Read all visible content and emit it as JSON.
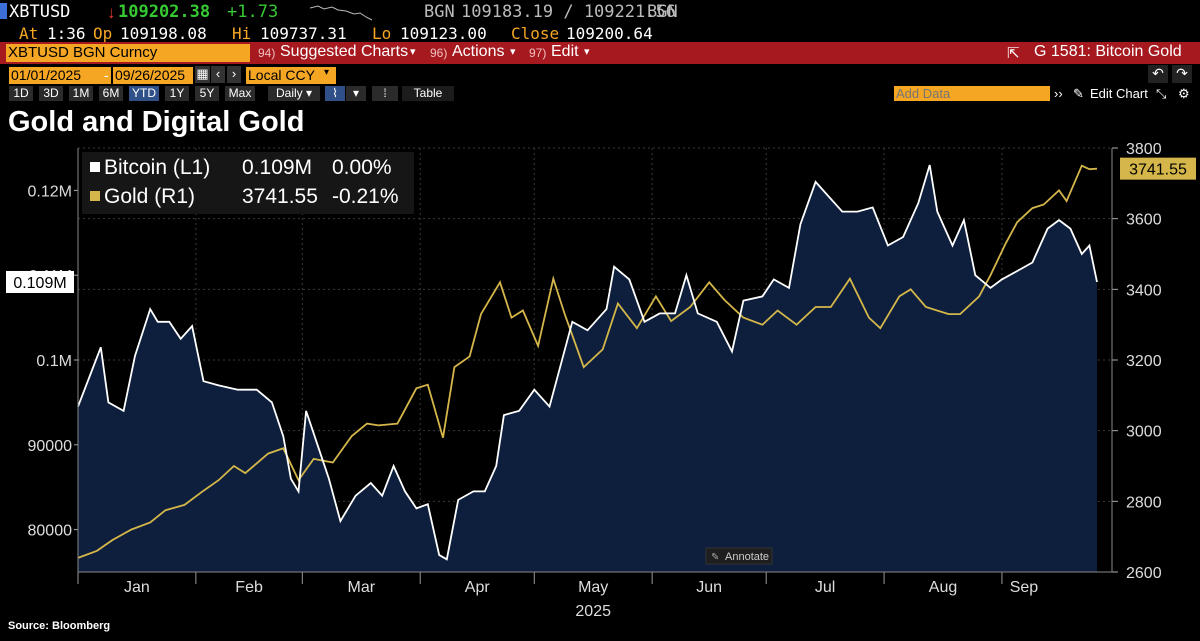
{
  "header": {
    "ticker": "XBTUSD",
    "last": "109202.38",
    "change": "+1.73",
    "bid_label": "BGN",
    "bid_ask": "109183.19 / 109221.56",
    "ask_label": "BGN",
    "at_label": "At",
    "at": "1:36",
    "op_label": "Op",
    "op": "109198.08",
    "hi_label": "Hi",
    "hi": "109737.31",
    "lo_label": "Lo",
    "lo": "109123.00",
    "close_label": "Close",
    "close": "109200.64"
  },
  "toolbar": {
    "security": "XBTUSD BGN Curncy",
    "suggested_num": "94)",
    "suggested": "Suggested Charts",
    "actions_num": "96)",
    "actions": "Actions",
    "edit_num": "97)",
    "edit": "Edit",
    "chart_id": "G 1581: Bitcoin Gold"
  },
  "range": {
    "start": "01/01/2025",
    "dash": "-",
    "end": "09/26/2025",
    "currency": "Local CCY"
  },
  "periods": [
    "1D",
    "3D",
    "1M",
    "6M",
    "YTD",
    "1Y",
    "5Y",
    "Max"
  ],
  "period_selected": "YTD",
  "frequency": "Daily",
  "table_label": "Table",
  "add_data_placeholder": "Add Data",
  "edit_chart_label": "Edit Chart",
  "title": "Gold and Digital Gold",
  "annotate_label": "Annotate",
  "source": "Source: Bloomberg",
  "legend": [
    {
      "name": "Bitcoin (L1)",
      "value": "0.109M",
      "pct": "0.00%",
      "color": "#ffffff"
    },
    {
      "name": "Gold (R1)",
      "value": "3741.55",
      "pct": "-0.21%",
      "color": "#d4b64a"
    }
  ],
  "colors": {
    "accent": "#f5a623",
    "bar": "#a5191f",
    "bitcoin": "#ffffff",
    "gold": "#d4b64a",
    "fill": "#0d1f3c"
  },
  "chart_data": {
    "type": "line",
    "title": "Gold and Digital Gold",
    "x_range": [
      "2025-01-01",
      "2025-09-26"
    ],
    "x_ticks": [
      "Jan",
      "Feb",
      "Mar",
      "Apr",
      "May",
      "Jun",
      "Jul",
      "Aug",
      "Sep"
    ],
    "x_year_label": "2025",
    "left_axis": {
      "ticks": [
        "80000",
        "90000",
        "0.1M",
        "0.11M",
        "0.12M"
      ],
      "ylim": [
        75000,
        125000
      ],
      "last_label": "0.109M"
    },
    "right_axis": {
      "ticks": [
        "2600",
        "2800",
        "3000",
        "3200",
        "3400",
        "3600",
        "3800"
      ],
      "ylim": [
        2600,
        3800
      ],
      "last_label": "3741.55"
    },
    "grid": true,
    "series": [
      {
        "name": "Bitcoin (L1)",
        "axis": "left",
        "area": true,
        "points": [
          [
            "2025-01-01",
            94500
          ],
          [
            "2025-01-04",
            98000
          ],
          [
            "2025-01-07",
            101500
          ],
          [
            "2025-01-09",
            95000
          ],
          [
            "2025-01-13",
            94000
          ],
          [
            "2025-01-16",
            100500
          ],
          [
            "2025-01-20",
            106000
          ],
          [
            "2025-01-22",
            104500
          ],
          [
            "2025-01-25",
            104500
          ],
          [
            "2025-01-28",
            102500
          ],
          [
            "2025-01-31",
            104000
          ],
          [
            "2025-02-03",
            97500
          ],
          [
            "2025-02-07",
            97000
          ],
          [
            "2025-02-12",
            96500
          ],
          [
            "2025-02-17",
            96500
          ],
          [
            "2025-02-21",
            95000
          ],
          [
            "2025-02-24",
            91000
          ],
          [
            "2025-02-26",
            86000
          ],
          [
            "2025-02-28",
            84500
          ],
          [
            "2025-03-02",
            94000
          ],
          [
            "2025-03-05",
            90000
          ],
          [
            "2025-03-08",
            86000
          ],
          [
            "2025-03-11",
            81000
          ],
          [
            "2025-03-15",
            84000
          ],
          [
            "2025-03-19",
            85500
          ],
          [
            "2025-03-22",
            84000
          ],
          [
            "2025-03-25",
            87500
          ],
          [
            "2025-03-28",
            84500
          ],
          [
            "2025-03-31",
            82500
          ],
          [
            "2025-04-03",
            83000
          ],
          [
            "2025-04-06",
            77000
          ],
          [
            "2025-04-08",
            76500
          ],
          [
            "2025-04-11",
            83500
          ],
          [
            "2025-04-15",
            84500
          ],
          [
            "2025-04-18",
            84500
          ],
          [
            "2025-04-21",
            87500
          ],
          [
            "2025-04-23",
            93500
          ],
          [
            "2025-04-27",
            94000
          ],
          [
            "2025-05-01",
            96500
          ],
          [
            "2025-05-05",
            94500
          ],
          [
            "2025-05-08",
            99500
          ],
          [
            "2025-05-11",
            104500
          ],
          [
            "2025-05-15",
            103500
          ],
          [
            "2025-05-20",
            106000
          ],
          [
            "2025-05-22",
            111000
          ],
          [
            "2025-05-26",
            109500
          ],
          [
            "2025-05-30",
            104500
          ],
          [
            "2025-06-03",
            105500
          ],
          [
            "2025-06-07",
            105500
          ],
          [
            "2025-06-10",
            110000
          ],
          [
            "2025-06-13",
            105500
          ],
          [
            "2025-06-18",
            104500
          ],
          [
            "2025-06-22",
            101000
          ],
          [
            "2025-06-25",
            107000
          ],
          [
            "2025-06-30",
            107500
          ],
          [
            "2025-07-03",
            109500
          ],
          [
            "2025-07-07",
            108500
          ],
          [
            "2025-07-10",
            116000
          ],
          [
            "2025-07-14",
            121000
          ],
          [
            "2025-07-17",
            119500
          ],
          [
            "2025-07-21",
            117500
          ],
          [
            "2025-07-25",
            117500
          ],
          [
            "2025-07-29",
            118000
          ],
          [
            "2025-08-02",
            113500
          ],
          [
            "2025-08-06",
            114500
          ],
          [
            "2025-08-10",
            118500
          ],
          [
            "2025-08-13",
            123000
          ],
          [
            "2025-08-15",
            117500
          ],
          [
            "2025-08-19",
            113500
          ],
          [
            "2025-08-22",
            116500
          ],
          [
            "2025-08-25",
            110000
          ],
          [
            "2025-08-29",
            108500
          ],
          [
            "2025-09-01",
            109500
          ],
          [
            "2025-09-05",
            110500
          ],
          [
            "2025-09-09",
            111500
          ],
          [
            "2025-09-13",
            115500
          ],
          [
            "2025-09-16",
            116500
          ],
          [
            "2025-09-19",
            115500
          ],
          [
            "2025-09-22",
            112500
          ],
          [
            "2025-09-24",
            113500
          ],
          [
            "2025-09-26",
            109200
          ]
        ]
      },
      {
        "name": "Gold (R1)",
        "axis": "right",
        "area": false,
        "points": [
          [
            "2025-01-01",
            2640
          ],
          [
            "2025-01-06",
            2660
          ],
          [
            "2025-01-10",
            2690
          ],
          [
            "2025-01-15",
            2720
          ],
          [
            "2025-01-20",
            2740
          ],
          [
            "2025-01-24",
            2775
          ],
          [
            "2025-01-29",
            2790
          ],
          [
            "2025-02-03",
            2830
          ],
          [
            "2025-02-07",
            2860
          ],
          [
            "2025-02-11",
            2900
          ],
          [
            "2025-02-14",
            2880
          ],
          [
            "2025-02-20",
            2935
          ],
          [
            "2025-02-24",
            2950
          ],
          [
            "2025-02-28",
            2860
          ],
          [
            "2025-03-04",
            2920
          ],
          [
            "2025-03-09",
            2910
          ],
          [
            "2025-03-14",
            2985
          ],
          [
            "2025-03-18",
            3020
          ],
          [
            "2025-03-21",
            3015
          ],
          [
            "2025-03-26",
            3020
          ],
          [
            "2025-03-31",
            3120
          ],
          [
            "2025-04-03",
            3130
          ],
          [
            "2025-04-07",
            2980
          ],
          [
            "2025-04-10",
            3180
          ],
          [
            "2025-04-14",
            3210
          ],
          [
            "2025-04-17",
            3330
          ],
          [
            "2025-04-22",
            3420
          ],
          [
            "2025-04-25",
            3320
          ],
          [
            "2025-04-28",
            3340
          ],
          [
            "2025-05-02",
            3240
          ],
          [
            "2025-05-06",
            3430
          ],
          [
            "2025-05-09",
            3330
          ],
          [
            "2025-05-14",
            3180
          ],
          [
            "2025-05-19",
            3230
          ],
          [
            "2025-05-23",
            3360
          ],
          [
            "2025-05-28",
            3290
          ],
          [
            "2025-06-02",
            3380
          ],
          [
            "2025-06-06",
            3310
          ],
          [
            "2025-06-11",
            3350
          ],
          [
            "2025-06-16",
            3420
          ],
          [
            "2025-06-20",
            3370
          ],
          [
            "2025-06-25",
            3320
          ],
          [
            "2025-06-30",
            3300
          ],
          [
            "2025-07-04",
            3340
          ],
          [
            "2025-07-09",
            3300
          ],
          [
            "2025-07-14",
            3350
          ],
          [
            "2025-07-18",
            3350
          ],
          [
            "2025-07-23",
            3430
          ],
          [
            "2025-07-28",
            3320
          ],
          [
            "2025-07-31",
            3290
          ],
          [
            "2025-08-05",
            3380
          ],
          [
            "2025-08-08",
            3400
          ],
          [
            "2025-08-12",
            3350
          ],
          [
            "2025-08-18",
            3330
          ],
          [
            "2025-08-21",
            3330
          ],
          [
            "2025-08-26",
            3380
          ],
          [
            "2025-08-29",
            3440
          ],
          [
            "2025-09-02",
            3530
          ],
          [
            "2025-09-05",
            3590
          ],
          [
            "2025-09-09",
            3630
          ],
          [
            "2025-09-12",
            3640
          ],
          [
            "2025-09-16",
            3680
          ],
          [
            "2025-09-18",
            3650
          ],
          [
            "2025-09-22",
            3750
          ],
          [
            "2025-09-24",
            3740
          ],
          [
            "2025-09-26",
            3741.55
          ]
        ]
      }
    ]
  }
}
